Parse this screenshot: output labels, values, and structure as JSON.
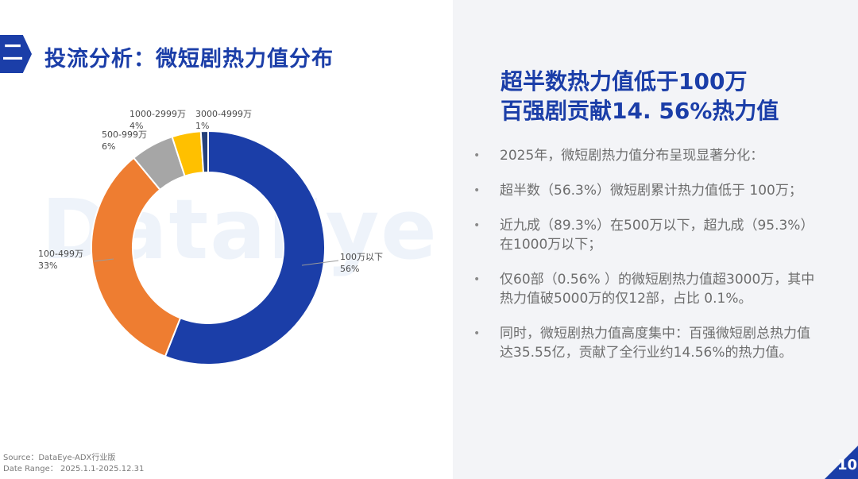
{
  "header": {
    "badge": "二",
    "title": "投流分析：微短剧热力值分布"
  },
  "watermark": "DataEye",
  "chart_data": {
    "type": "pie",
    "donut": true,
    "slices": [
      {
        "name": "100万以下",
        "value": 56,
        "label": "56%",
        "color": "#1b3ea8"
      },
      {
        "name": "100-499万",
        "value": 33,
        "label": "33%",
        "color": "#ee7d31"
      },
      {
        "name": "500-999万",
        "value": 6,
        "label": "6%",
        "color": "#a6a6a6"
      },
      {
        "name": "1000-2999万",
        "value": 4,
        "label": "4%",
        "color": "#ffc000"
      },
      {
        "name": "3000-4999万",
        "value": 1,
        "label": "1%",
        "color": "#243f7a"
      }
    ]
  },
  "source": {
    "line1": "Source：DataEye-ADX行业版",
    "line2": "Date Range：  2025.1.1-2025.12.31"
  },
  "headline": {
    "line1": "超半数热力值低于100万",
    "line2": "百强剧贡献14. 56%热力值"
  },
  "bullets": [
    {
      "dot": "•",
      "text": "2025年，微短剧热力值分布呈现显著分化："
    },
    {
      "dot": "•",
      "text": "超半数（56.3%）微短剧累计热力值低于 100万；"
    },
    {
      "dot": "•",
      "text": "近九成（89.3%）在500万以下，超九成（95.3%）在1000万以下；"
    },
    {
      "dot": "•",
      "text": "仅60部（0.56% ）的微短剧热力值超3000万，其中热力值破5000万的仅12部，占比 0.1%。"
    },
    {
      "dot": "•",
      "text": "同时，微短剧热力值高度集中：百强微短剧总热力值达35.55亿，贡献了全行业约14.56%的热力值。"
    }
  ],
  "page_number": "10"
}
